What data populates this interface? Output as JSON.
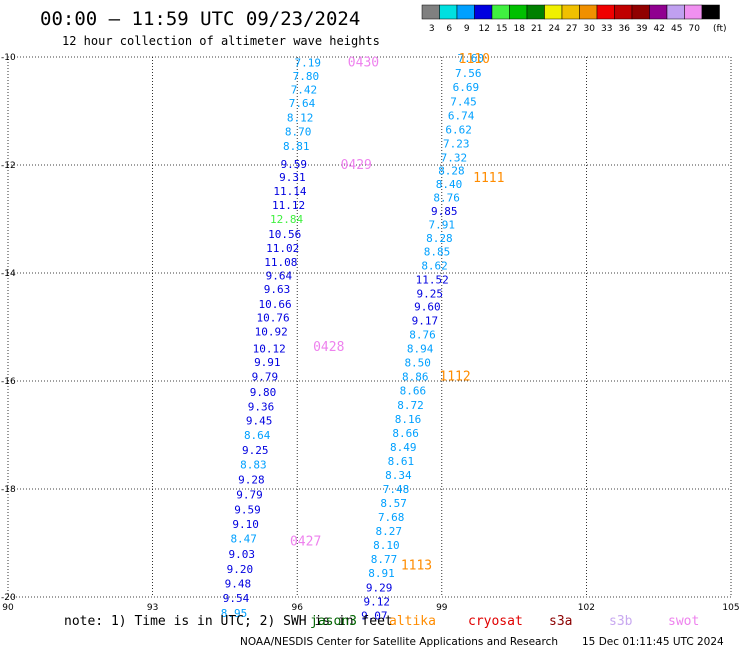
{
  "title": "00:00 – 11:59 UTC 09/23/2024",
  "subtitle": "12 hour collection of altimeter wave heights",
  "footer_note": "note: 1) Time is in UTC; 2) SWH is in feet",
  "credit": "NOAA/NESDIS Center for Satellite Applications and Research",
  "timestamp": "15 Dec 01:11:45 UTC 2024",
  "satellites": [
    {
      "name": "jason3",
      "color": "#006400"
    },
    {
      "name": "altika",
      "color": "#ff8c00"
    },
    {
      "name": "cryosat",
      "color": "#e00000"
    },
    {
      "name": "s3a",
      "color": "#8b0000"
    },
    {
      "name": "s3b",
      "color": "#c8a8f0"
    },
    {
      "name": "swot",
      "color": "#ee82ee"
    }
  ],
  "colorbar": {
    "unit": "(ft)",
    "bins": [
      {
        "label": "3",
        "color": "#808080"
      },
      {
        "label": "6",
        "color": "#00e0e0"
      },
      {
        "label": "9",
        "color": "#00a0ff"
      },
      {
        "label": "12",
        "color": "#0000e0"
      },
      {
        "label": "15",
        "color": "#40f040"
      },
      {
        "label": "18",
        "color": "#00c000"
      },
      {
        "label": "21",
        "color": "#008000"
      },
      {
        "label": "24",
        "color": "#f0f000"
      },
      {
        "label": "27",
        "color": "#f0c000"
      },
      {
        "label": "30",
        "color": "#f09000"
      },
      {
        "label": "33",
        "color": "#f00000"
      },
      {
        "label": "36",
        "color": "#c00000"
      },
      {
        "label": "39",
        "color": "#900000"
      },
      {
        "label": "42",
        "color": "#900090"
      },
      {
        "label": "45",
        "color": "#c0a0f0"
      },
      {
        "label": "70",
        "color": "#f090f0"
      },
      {
        "label": "",
        "color": "#000000"
      }
    ]
  },
  "chart_data": {
    "type": "scatter",
    "xlim": [
      90,
      105
    ],
    "ylim": [
      -20,
      -10
    ],
    "x_ticks": [
      "90",
      "93",
      "96",
      "99",
      "102",
      "105"
    ],
    "y_ticks": [
      "-10",
      "-12",
      "-14",
      "-16",
      "-18",
      "-20"
    ],
    "grid": true,
    "time_labels": [
      {
        "text": "0430",
        "x": 97.05,
        "y": -10.08,
        "color": "#ee82ee"
      },
      {
        "text": "0429",
        "x": 96.9,
        "y": -11.98,
        "color": "#ee82ee"
      },
      {
        "text": "0428",
        "x": 96.33,
        "y": -15.35,
        "color": "#ee82ee"
      },
      {
        "text": "0427",
        "x": 95.85,
        "y": -18.95,
        "color": "#ee82ee"
      },
      {
        "text": "1110",
        "x": 99.35,
        "y": -10.02,
        "color": "#ff8c00"
      },
      {
        "text": "1111",
        "x": 99.65,
        "y": -12.22,
        "color": "#ff8c00"
      },
      {
        "text": "1112",
        "x": 98.95,
        "y": -15.9,
        "color": "#ff8c00"
      },
      {
        "text": "1113",
        "x": 98.15,
        "y": -19.4,
        "color": "#ff8c00"
      }
    ],
    "points": [
      {
        "x": 96.22,
        "y": -10.1,
        "v": "7.19",
        "c": "#00a0ff"
      },
      {
        "x": 96.18,
        "y": -10.35,
        "v": "7.80",
        "c": "#00a0ff"
      },
      {
        "x": 96.14,
        "y": -10.6,
        "v": "7.42",
        "c": "#00a0ff"
      },
      {
        "x": 96.1,
        "y": -10.85,
        "v": "7.64",
        "c": "#00a0ff"
      },
      {
        "x": 96.06,
        "y": -11.12,
        "v": "8.12",
        "c": "#00a0ff"
      },
      {
        "x": 96.02,
        "y": -11.38,
        "v": "8.70",
        "c": "#00a0ff"
      },
      {
        "x": 95.98,
        "y": -11.65,
        "v": "8.81",
        "c": "#00a0ff"
      },
      {
        "x": 95.93,
        "y": -11.98,
        "v": "9.59",
        "c": "#0000e0"
      },
      {
        "x": 95.9,
        "y": -12.22,
        "v": "9.31",
        "c": "#0000e0"
      },
      {
        "x": 95.85,
        "y": -12.48,
        "v": "11.14",
        "c": "#0000e0"
      },
      {
        "x": 95.82,
        "y": -12.74,
        "v": "11.12",
        "c": "#0000e0"
      },
      {
        "x": 95.78,
        "y": -13.0,
        "v": "12.84",
        "c": "#40f040"
      },
      {
        "x": 95.74,
        "y": -13.28,
        "v": "10.56",
        "c": "#0000e0"
      },
      {
        "x": 95.7,
        "y": -13.54,
        "v": "11.02",
        "c": "#0000e0"
      },
      {
        "x": 95.66,
        "y": -13.8,
        "v": "11.08",
        "c": "#0000e0"
      },
      {
        "x": 95.62,
        "y": -14.05,
        "v": "9.64",
        "c": "#0000e0"
      },
      {
        "x": 95.58,
        "y": -14.3,
        "v": "9.63",
        "c": "#0000e0"
      },
      {
        "x": 95.54,
        "y": -14.57,
        "v": "10.66",
        "c": "#0000e0"
      },
      {
        "x": 95.5,
        "y": -14.82,
        "v": "10.76",
        "c": "#0000e0"
      },
      {
        "x": 95.46,
        "y": -15.08,
        "v": "10.92",
        "c": "#0000e0"
      },
      {
        "x": 95.42,
        "y": -15.4,
        "v": "10.12",
        "c": "#0000e0"
      },
      {
        "x": 95.38,
        "y": -15.65,
        "v": "9.91",
        "c": "#0000e0"
      },
      {
        "x": 95.33,
        "y": -15.92,
        "v": "9.79",
        "c": "#0000e0"
      },
      {
        "x": 95.29,
        "y": -16.2,
        "v": "9.80",
        "c": "#0000e0"
      },
      {
        "x": 95.25,
        "y": -16.47,
        "v": "9.36",
        "c": "#0000e0"
      },
      {
        "x": 95.21,
        "y": -16.73,
        "v": "9.45",
        "c": "#0000e0"
      },
      {
        "x": 95.17,
        "y": -17.0,
        "v": "8.64",
        "c": "#00a0ff"
      },
      {
        "x": 95.13,
        "y": -17.28,
        "v": "9.25",
        "c": "#0000e0"
      },
      {
        "x": 95.09,
        "y": -17.55,
        "v": "8.83",
        "c": "#00a0ff"
      },
      {
        "x": 95.05,
        "y": -17.82,
        "v": "9.28",
        "c": "#0000e0"
      },
      {
        "x": 95.01,
        "y": -18.1,
        "v": "9.79",
        "c": "#0000e0"
      },
      {
        "x": 94.97,
        "y": -18.38,
        "v": "9.59",
        "c": "#0000e0"
      },
      {
        "x": 94.93,
        "y": -18.65,
        "v": "9.10",
        "c": "#0000e0"
      },
      {
        "x": 94.89,
        "y": -18.92,
        "v": "8.47",
        "c": "#00a0ff"
      },
      {
        "x": 94.85,
        "y": -19.2,
        "v": "9.03",
        "c": "#0000e0"
      },
      {
        "x": 94.81,
        "y": -19.48,
        "v": "9.20",
        "c": "#0000e0"
      },
      {
        "x": 94.77,
        "y": -19.75,
        "v": "9.48",
        "c": "#0000e0"
      },
      {
        "x": 94.73,
        "y": -20.02,
        "v": "9.54",
        "c": "#0000e0"
      },
      {
        "x": 94.69,
        "y": -20.3,
        "v": "8.95",
        "c": "#00a0ff"
      },
      {
        "x": 99.6,
        "y": -10.02,
        "v": "7.60",
        "c": "#00a0ff"
      },
      {
        "x": 99.55,
        "y": -10.3,
        "v": "7.56",
        "c": "#00a0ff"
      },
      {
        "x": 99.5,
        "y": -10.56,
        "v": "6.69",
        "c": "#00a0ff"
      },
      {
        "x": 99.45,
        "y": -10.82,
        "v": "7.45",
        "c": "#00a0ff"
      },
      {
        "x": 99.4,
        "y": -11.08,
        "v": "6.74",
        "c": "#00a0ff"
      },
      {
        "x": 99.35,
        "y": -11.34,
        "v": "6.62",
        "c": "#00a0ff"
      },
      {
        "x": 99.3,
        "y": -11.6,
        "v": "7.23",
        "c": "#00a0ff"
      },
      {
        "x": 99.25,
        "y": -11.86,
        "v": "7.32",
        "c": "#00a0ff"
      },
      {
        "x": 99.2,
        "y": -12.1,
        "v": "8.28",
        "c": "#00a0ff"
      },
      {
        "x": 99.15,
        "y": -12.35,
        "v": "8.40",
        "c": "#00a0ff"
      },
      {
        "x": 99.1,
        "y": -12.6,
        "v": "8.76",
        "c": "#00a0ff"
      },
      {
        "x": 99.05,
        "y": -12.85,
        "v": "9.85",
        "c": "#0000e0"
      },
      {
        "x": 99.0,
        "y": -13.1,
        "v": "7.91",
        "c": "#00a0ff"
      },
      {
        "x": 98.95,
        "y": -13.35,
        "v": "8.28",
        "c": "#00a0ff"
      },
      {
        "x": 98.9,
        "y": -13.6,
        "v": "8.85",
        "c": "#00a0ff"
      },
      {
        "x": 98.85,
        "y": -13.86,
        "v": "8.62",
        "c": "#00a0ff"
      },
      {
        "x": 98.8,
        "y": -14.12,
        "v": "11.52",
        "c": "#0000e0"
      },
      {
        "x": 98.75,
        "y": -14.38,
        "v": "9.25",
        "c": "#0000e0"
      },
      {
        "x": 98.7,
        "y": -14.62,
        "v": "9.60",
        "c": "#0000e0"
      },
      {
        "x": 98.65,
        "y": -14.88,
        "v": "9.17",
        "c": "#0000e0"
      },
      {
        "x": 98.6,
        "y": -15.14,
        "v": "8.76",
        "c": "#00a0ff"
      },
      {
        "x": 98.55,
        "y": -15.4,
        "v": "8.94",
        "c": "#00a0ff"
      },
      {
        "x": 98.5,
        "y": -15.66,
        "v": "8.50",
        "c": "#00a0ff"
      },
      {
        "x": 98.45,
        "y": -15.92,
        "v": "8.86",
        "c": "#00a0ff"
      },
      {
        "x": 98.4,
        "y": -16.18,
        "v": "8.66",
        "c": "#00a0ff"
      },
      {
        "x": 98.35,
        "y": -16.44,
        "v": "8.72",
        "c": "#00a0ff"
      },
      {
        "x": 98.3,
        "y": -16.7,
        "v": "8.16",
        "c": "#00a0ff"
      },
      {
        "x": 98.25,
        "y": -16.96,
        "v": "8.66",
        "c": "#00a0ff"
      },
      {
        "x": 98.2,
        "y": -17.22,
        "v": "8.49",
        "c": "#00a0ff"
      },
      {
        "x": 98.15,
        "y": -17.48,
        "v": "8.61",
        "c": "#00a0ff"
      },
      {
        "x": 98.1,
        "y": -17.74,
        "v": "8.34",
        "c": "#00a0ff"
      },
      {
        "x": 98.05,
        "y": -18.0,
        "v": "7.48",
        "c": "#00a0ff"
      },
      {
        "x": 98.0,
        "y": -18.26,
        "v": "8.57",
        "c": "#00a0ff"
      },
      {
        "x": 97.95,
        "y": -18.52,
        "v": "7.68",
        "c": "#00a0ff"
      },
      {
        "x": 97.9,
        "y": -18.78,
        "v": "8.27",
        "c": "#00a0ff"
      },
      {
        "x": 97.85,
        "y": -19.04,
        "v": "8.10",
        "c": "#00a0ff"
      },
      {
        "x": 97.8,
        "y": -19.3,
        "v": "8.77",
        "c": "#00a0ff"
      },
      {
        "x": 97.75,
        "y": -19.56,
        "v": "8.91",
        "c": "#00a0ff"
      },
      {
        "x": 97.7,
        "y": -19.82,
        "v": "9.29",
        "c": "#0000e0"
      },
      {
        "x": 97.65,
        "y": -20.08,
        "v": "9.12",
        "c": "#0000e0"
      },
      {
        "x": 97.6,
        "y": -20.34,
        "v": "9.07",
        "c": "#0000e0"
      }
    ]
  }
}
